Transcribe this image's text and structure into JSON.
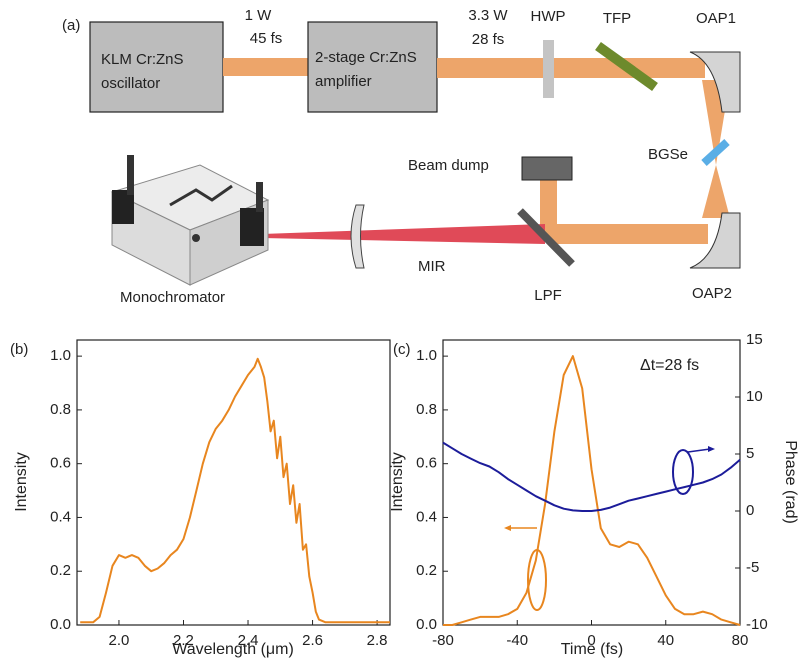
{
  "diagram": {
    "label": "(a)",
    "oscillator": [
      "KLM Cr:ZnS",
      "oscillator"
    ],
    "amplifier": [
      "2-stage Cr:ZnS",
      "amplifier"
    ],
    "oscillator_output": [
      "1 W",
      "45 fs"
    ],
    "amplifier_output": [
      "3.3 W",
      "28 fs"
    ],
    "components": {
      "hwp": "HWP",
      "tfp": "TFP",
      "oap1": "OAP1",
      "bgse": "BGSe",
      "beam_dump": "Beam dump",
      "mir": "MIR",
      "lpf": "LPF",
      "oap2": "OAP2",
      "monochromator": "Monochromator"
    }
  },
  "chart_data": [
    {
      "type": "line",
      "panel_label": "(b)",
      "x_label": "Wavelength (μm)",
      "y_label": "Intensity",
      "x": [
        1.88,
        1.92,
        1.94,
        1.96,
        1.98,
        2.0,
        2.02,
        2.04,
        2.06,
        2.08,
        2.1,
        2.12,
        2.14,
        2.16,
        2.18,
        2.2,
        2.22,
        2.24,
        2.26,
        2.28,
        2.3,
        2.32,
        2.34,
        2.36,
        2.38,
        2.4,
        2.42,
        2.43,
        2.44,
        2.45,
        2.46,
        2.47,
        2.48,
        2.49,
        2.5,
        2.51,
        2.52,
        2.53,
        2.54,
        2.55,
        2.56,
        2.57,
        2.58,
        2.59,
        2.6,
        2.61,
        2.62,
        2.64,
        2.7,
        2.84
      ],
      "series": [
        {
          "color": "#e8861f",
          "values": [
            0.01,
            0.01,
            0.03,
            0.12,
            0.22,
            0.26,
            0.25,
            0.26,
            0.25,
            0.22,
            0.2,
            0.21,
            0.23,
            0.26,
            0.28,
            0.32,
            0.4,
            0.5,
            0.6,
            0.68,
            0.73,
            0.76,
            0.8,
            0.85,
            0.89,
            0.93,
            0.96,
            0.99,
            0.96,
            0.92,
            0.83,
            0.72,
            0.76,
            0.62,
            0.7,
            0.55,
            0.6,
            0.45,
            0.52,
            0.38,
            0.45,
            0.28,
            0.3,
            0.18,
            0.12,
            0.05,
            0.02,
            0.01,
            0.01,
            0.01
          ]
        }
      ],
      "xlim": [
        1.87,
        2.84
      ],
      "xticks": [
        {
          "value": 2,
          "label": "2.0"
        },
        2.2,
        2.4,
        2.6,
        2.8
      ],
      "ylim": [
        0,
        1.06
      ],
      "yticks": [
        {
          "value": 0,
          "label": "0.0"
        },
        0.2,
        0.4,
        0.6,
        0.8,
        {
          "value": 1,
          "label": "1.0"
        }
      ]
    },
    {
      "type": "line",
      "panel_label": "(c)",
      "x_label": "Time (fs)",
      "y_label": "Intensity",
      "y2_label": "Phase (rad)",
      "annotation": "Δt=28 fs",
      "x": [
        -80,
        -75,
        -70,
        -65,
        -60,
        -55,
        -50,
        -45,
        -40,
        -35,
        -30,
        -25,
        -20,
        -15,
        -10,
        -5,
        0,
        5,
        10,
        15,
        20,
        25,
        30,
        35,
        40,
        45,
        50,
        55,
        60,
        65,
        70,
        75,
        80
      ],
      "series": [
        {
          "color": "#e8861f",
          "values": [
            0.0,
            0.0,
            0.01,
            0.02,
            0.03,
            0.03,
            0.03,
            0.04,
            0.06,
            0.12,
            0.24,
            0.45,
            0.72,
            0.93,
            1.0,
            0.88,
            0.58,
            0.36,
            0.3,
            0.29,
            0.31,
            0.3,
            0.25,
            0.18,
            0.11,
            0.06,
            0.04,
            0.04,
            0.05,
            0.04,
            0.02,
            0.01,
            0.0
          ]
        },
        {
          "color": "#1c1c9a",
          "axis": "y2",
          "values": [
            6.0,
            5.5,
            5.0,
            4.6,
            4.2,
            3.9,
            3.4,
            2.8,
            2.3,
            1.8,
            1.3,
            0.9,
            0.5,
            0.2,
            0.05,
            0.0,
            0.0,
            0.1,
            0.3,
            0.6,
            0.9,
            1.1,
            1.3,
            1.5,
            1.7,
            1.9,
            2.1,
            2.3,
            2.5,
            2.8,
            3.2,
            3.8,
            4.5
          ]
        }
      ],
      "xlim": [
        -80,
        80
      ],
      "xticks": [
        -80,
        -40,
        0,
        40,
        80
      ],
      "ylim": [
        0,
        1.06
      ],
      "yticks": [
        {
          "value": 0,
          "label": "0.0"
        },
        0.2,
        0.4,
        0.6,
        0.8,
        {
          "value": 1,
          "label": "1.0"
        }
      ],
      "y2lim": [
        -10,
        15
      ],
      "y2ticks": [
        -10,
        -5,
        0,
        5,
        10,
        15
      ]
    }
  ]
}
